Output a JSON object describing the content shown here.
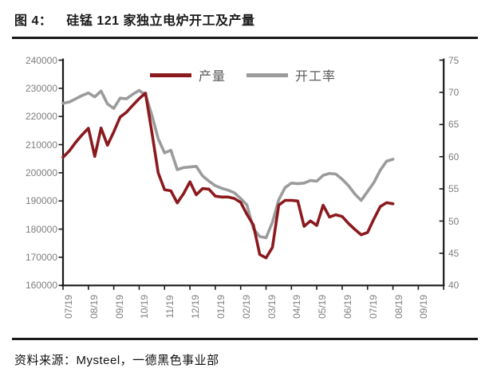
{
  "figure": {
    "label": "图 4：",
    "title": "硅锰 121 家独立电炉开工及产量"
  },
  "source": {
    "text": "资料来源：Mysteel，一德黑色事业部"
  },
  "chart_data": {
    "type": "line",
    "title": "硅锰121家独立电炉开工及产量",
    "grid": false,
    "legend_position": "top-center",
    "x_tick_labels": [
      "07/19",
      "08/19",
      "09/19",
      "10/19",
      "11/19",
      "12/19",
      "01/19",
      "02/19",
      "03/19",
      "04/19",
      "05/19",
      "06/19",
      "07/19",
      "08/19",
      "09/19"
    ],
    "x_data_month_span": [
      0,
      13
    ],
    "left_axis": {
      "min": 160000,
      "max": 240000,
      "step": 10000,
      "tick_labels": [
        "240000",
        "230000",
        "220000",
        "210000",
        "200000",
        "190000",
        "180000",
        "170000",
        "160000"
      ]
    },
    "right_axis": {
      "min": 40,
      "max": 75,
      "step": 5,
      "tick_labels": [
        "75",
        "70",
        "65",
        "60",
        "55",
        "50",
        "45",
        "40"
      ]
    },
    "series": [
      {
        "name": "产量",
        "axis": "left",
        "color": "#8b1a1e",
        "values": [
          205500,
          207800,
          210800,
          213500,
          215800,
          205800,
          215900,
          209800,
          214500,
          219800,
          221500,
          224000,
          226300,
          228300,
          214500,
          200000,
          194000,
          193600,
          189300,
          192600,
          196800,
          192200,
          194400,
          194200,
          191700,
          191400,
          191400,
          190900,
          189500,
          185200,
          181500,
          171000,
          169800,
          173500,
          188500,
          190200,
          190200,
          190000,
          181000,
          182900,
          181300,
          188500,
          184300,
          185100,
          184500,
          182000,
          179900,
          178000,
          178800,
          183600,
          188000,
          189400,
          189000
        ]
      },
      {
        "name": "开工率",
        "axis": "right",
        "color": "#9b9b9b",
        "values": [
          68.3,
          68.5,
          69.0,
          69.5,
          69.9,
          69.3,
          70.2,
          68.2,
          67.5,
          69.1,
          69.0,
          69.7,
          70.3,
          69.6,
          66.5,
          62.8,
          60.6,
          61.0,
          58.0,
          58.3,
          58.4,
          58.5,
          57.0,
          56.2,
          55.5,
          55.1,
          54.8,
          54.4,
          53.5,
          52.5,
          48.8,
          47.6,
          47.4,
          49.8,
          53.3,
          55.2,
          55.9,
          55.8,
          55.9,
          56.3,
          56.2,
          57.1,
          57.4,
          57.3,
          56.5,
          55.5,
          54.2,
          53.2,
          54.6,
          56.0,
          57.9,
          59.3,
          59.6
        ]
      }
    ],
    "style": {
      "axis_color": "#1a1a1a",
      "tick_label_color": "#7f7f7f",
      "line_width": 3.6
    }
  }
}
